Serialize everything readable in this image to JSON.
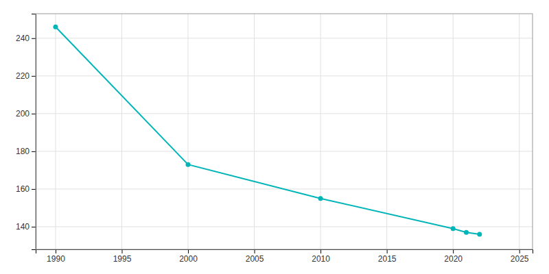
{
  "chart_data": {
    "type": "line",
    "x": [
      1990,
      2000,
      2010,
      2020,
      2021,
      2022
    ],
    "values": [
      246,
      173,
      155,
      139,
      137,
      136
    ],
    "color": "#00b5b8",
    "marker": "circle",
    "xlim": [
      1988.5,
      2026
    ],
    "ylim": [
      128,
      253
    ],
    "xticks": [
      1990,
      1995,
      2000,
      2005,
      2010,
      2015,
      2020,
      2025
    ],
    "yticks": [
      140,
      160,
      180,
      200,
      220,
      240
    ],
    "grid": true
  }
}
